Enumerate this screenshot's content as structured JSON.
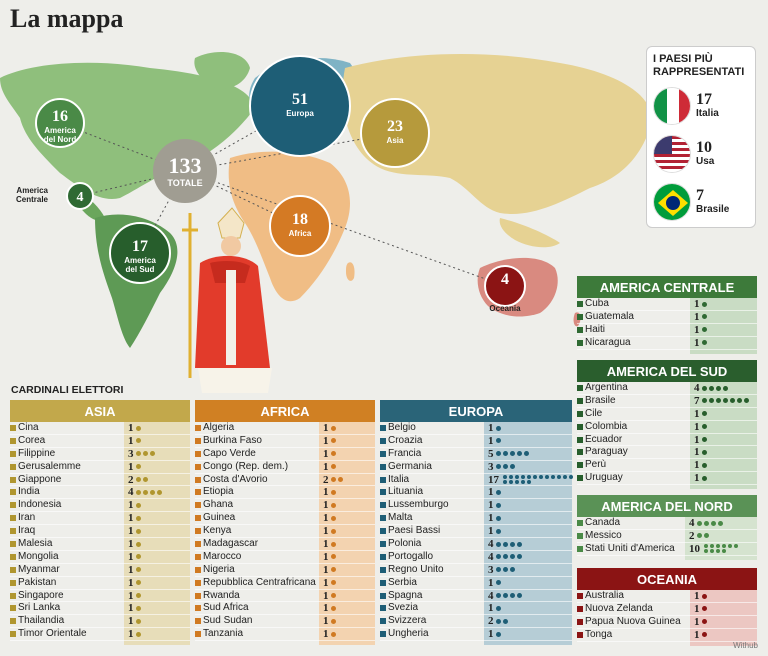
{
  "title": "La mappa",
  "map": {
    "total": {
      "num": "133",
      "label": "TOTALE"
    },
    "regions": [
      {
        "id": "am-nord",
        "num": "16",
        "label1": "America",
        "label2": "del Nord",
        "color": "#4a8a47"
      },
      {
        "id": "am-centr",
        "num": "4",
        "label1": "America",
        "label2": "Centrale",
        "color": "#2f6a33"
      },
      {
        "id": "am-sud",
        "num": "17",
        "label1": "America",
        "label2": "del Sud",
        "color": "#275e2c"
      },
      {
        "id": "europa",
        "num": "51",
        "label1": "Europa",
        "label2": "",
        "color": "#1e5e76"
      },
      {
        "id": "asia",
        "num": "23",
        "label1": "Asia",
        "label2": "",
        "color": "#b69a3c"
      },
      {
        "id": "africa",
        "num": "18",
        "label1": "Africa",
        "label2": "",
        "color": "#d47a24"
      },
      {
        "id": "oceania",
        "num": "4",
        "label1": "Oceania",
        "label2": "",
        "color": "#8b1414"
      }
    ]
  },
  "legend": {
    "title": "I PAESI PIÙ RAPPRESENTATI",
    "items": [
      {
        "num": "17",
        "name": "Italia",
        "flag": "it-flag-icon"
      },
      {
        "num": "10",
        "name": "Usa",
        "flag": "us-flag-icon"
      },
      {
        "num": "7",
        "name": "Brasile",
        "flag": "br-flag-icon"
      }
    ]
  },
  "subtitle": "CARDINALI ELETTORI",
  "watermark": "Withub",
  "chart_data": {
    "type": "table",
    "title": "La mappa",
    "totals": {
      "Europa": 51,
      "Asia": 23,
      "Africa": 18,
      "America del Sud": 17,
      "America del Nord": 16,
      "America Centrale": 4,
      "Oceania": 4,
      "Totale": 133
    },
    "groups": [
      {
        "name": "ASIA",
        "color": "#c2a84b",
        "dot": "#b0962f",
        "bg": "#e7ddb9",
        "rows": [
          [
            "Cina",
            1
          ],
          [
            "Corea",
            1
          ],
          [
            "Filippine",
            3
          ],
          [
            "Gerusalemme",
            1
          ],
          [
            "Giappone",
            2
          ],
          [
            "India",
            4
          ],
          [
            "Indonesia",
            1
          ],
          [
            "Iran",
            1
          ],
          [
            "Iraq",
            1
          ],
          [
            "Malesia",
            1
          ],
          [
            "Mongolia",
            1
          ],
          [
            "Myanmar",
            1
          ],
          [
            "Pakistan",
            1
          ],
          [
            "Singapore",
            1
          ],
          [
            "Sri Lanka",
            1
          ],
          [
            "Thailandia",
            1
          ],
          [
            "Timor Orientale",
            1
          ]
        ]
      },
      {
        "name": "AFRICA",
        "color": "#d08023",
        "dot": "#d07a22",
        "bg": "#f3d3b0",
        "rows": [
          [
            "Algeria",
            1
          ],
          [
            "Burkina Faso",
            1
          ],
          [
            "Capo Verde",
            1
          ],
          [
            "Congo (Rep. dem.)",
            1
          ],
          [
            "Costa d'Avorio",
            2
          ],
          [
            "Etiopia",
            1
          ],
          [
            "Ghana",
            1
          ],
          [
            "Guinea",
            1
          ],
          [
            "Kenya",
            1
          ],
          [
            "Madagascar",
            1
          ],
          [
            "Marocco",
            1
          ],
          [
            "Nigeria",
            1
          ],
          [
            "Repubblica Centrafricana",
            1
          ],
          [
            "Rwanda",
            1
          ],
          [
            "Sud Africa",
            1
          ],
          [
            "Sud Sudan",
            1
          ],
          [
            "Tanzania",
            1
          ]
        ]
      },
      {
        "name": "EUROPA",
        "color": "#2a6478",
        "dot": "#1e5e76",
        "bg": "#b6cdd6",
        "rows": [
          [
            "Belgio",
            1
          ],
          [
            "Croazia",
            1
          ],
          [
            "Francia",
            5
          ],
          [
            "Germania",
            3
          ],
          [
            "Italia",
            17
          ],
          [
            "Lituania",
            1
          ],
          [
            "Lussemburgo",
            1
          ],
          [
            "Malta",
            1
          ],
          [
            "Paesi Bassi",
            1
          ],
          [
            "Polonia",
            4
          ],
          [
            "Portogallo",
            4
          ],
          [
            "Regno Unito",
            3
          ],
          [
            "Serbia",
            1
          ],
          [
            "Spagna",
            4
          ],
          [
            "Svezia",
            1
          ],
          [
            "Svizzera",
            2
          ],
          [
            "Ungheria",
            1
          ]
        ]
      },
      {
        "name": "AMERICA CENTRALE",
        "color": "#3d7a3a",
        "dot": "#2f6a33",
        "bg": "#c9dcc4",
        "rows": [
          [
            "Cuba",
            1
          ],
          [
            "Guatemala",
            1
          ],
          [
            "Haiti",
            1
          ],
          [
            "Nicaragua",
            1
          ]
        ]
      },
      {
        "name": "AMERICA DEL SUD",
        "color": "#2a5e2d",
        "dot": "#275e2c",
        "bg": "#c9dcc4",
        "rows": [
          [
            "Argentina",
            4
          ],
          [
            "Brasile",
            7
          ],
          [
            "Cile",
            1
          ],
          [
            "Colombia",
            1
          ],
          [
            "Ecuador",
            1
          ],
          [
            "Paraguay",
            1
          ],
          [
            "Perù",
            1
          ],
          [
            "Uruguay",
            1
          ]
        ]
      },
      {
        "name": "AMERICA DEL NORD",
        "color": "#5a9256",
        "dot": "#4a8a47",
        "bg": "#d5e3cf",
        "rows": [
          [
            "Canada",
            4
          ],
          [
            "Messico",
            2
          ],
          [
            "Stati Uniti d'America",
            10
          ]
        ]
      },
      {
        "name": "OCEANIA",
        "color": "#8b1414",
        "dot": "#8b1414",
        "bg": "#ecc7c2",
        "rows": [
          [
            "Australia",
            1
          ],
          [
            "Nuova Zelanda",
            1
          ],
          [
            "Papua Nuova Guinea",
            1
          ],
          [
            "Tonga",
            1
          ]
        ]
      }
    ]
  }
}
